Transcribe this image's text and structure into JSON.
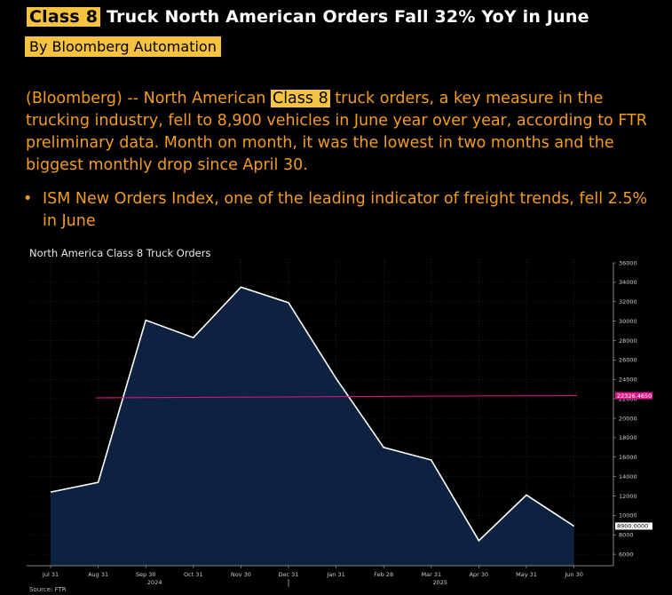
{
  "headline": {
    "highlight": "Class 8",
    "rest": " Truck North American Orders Fall 32% YoY in June"
  },
  "byline": "By Bloomberg Automation",
  "body": {
    "before": "(Bloomberg) -- North American ",
    "highlight": "Class 8",
    "after": " truck orders, a key measure in the trucking industry, fell to 8,900 vehicles in June year over year, according to FTR preliminary data. Month on month, it was the lowest in two months and the biggest monthly drop since April 30."
  },
  "bullet": "ISM New Orders Index, one of the leading indicator of freight trends, fell 2.5% in June",
  "chart_title": "North America Class 8 Truck Orders",
  "source": "Source: FTR",
  "colors": {
    "background": "#000000",
    "text": "#f39c1e",
    "highlight": "#f5c242",
    "area_fill": "#0d2240",
    "line": "#ffffff",
    "average_line": "#e0168c"
  },
  "chart_data": {
    "type": "area",
    "title": "North America Class 8 Truck Orders",
    "x": [
      "Jul 31 2024",
      "Aug 31 2024",
      "Sep 30 2024",
      "Oct 31 2024",
      "Nov 30 2024",
      "Dec 31 2024",
      "Jan 31 2025",
      "Feb 28 2025",
      "Mar 31 2025",
      "Apr 30 2025",
      "May 31 2025",
      "Jun 30 2025"
    ],
    "x_tick_labels": [
      "Jul 31",
      "Aug 31",
      "Sep 30",
      "Oct 31",
      "Nov 30",
      "Dec 31",
      "Jan 31",
      "Feb 28",
      "Mar 31",
      "Apr 30",
      "May 31",
      "Jun 30"
    ],
    "year_labels": [
      {
        "label": "2024",
        "under": "Sep 30"
      },
      {
        "label": "2025",
        "under": "Mar 31"
      }
    ],
    "series": [
      {
        "values": [
          12400,
          13400,
          30100,
          28300,
          33500,
          31900,
          24100,
          17000,
          15700,
          7400,
          12100,
          8900
        ]
      }
    ],
    "average": {
      "values": [
        22100,
        22150,
        22200,
        22250,
        22300,
        22326.465
      ],
      "label": "22326.4650"
    },
    "last_value_label": "8900.0000",
    "y_tick_labels": [
      "6000",
      "8000",
      "10000",
      "12000",
      "14000",
      "16000",
      "18000",
      "20000",
      "22000",
      "24000",
      "26000",
      "28000",
      "30000",
      "32000",
      "34000",
      "36000"
    ],
    "ylim": [
      4000,
      36000
    ],
    "y_axis_side": "right",
    "grid": true
  }
}
